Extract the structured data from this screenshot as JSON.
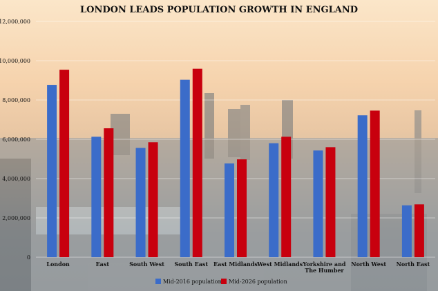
{
  "chart_data": {
    "type": "bar",
    "title": "LONDON LEADS POPULATION GROWTH IN ENGLAND",
    "xlabel": "",
    "ylabel": "",
    "categories": [
      "London",
      "East",
      "South West",
      "South East",
      "East Midlands",
      "West Midlands",
      "Yorkshire and The Humber",
      "North West",
      "North East"
    ],
    "category_lines": [
      [
        "London"
      ],
      [
        "East"
      ],
      [
        "South West"
      ],
      [
        "South East"
      ],
      [
        "East Midlands"
      ],
      [
        "West Midlands"
      ],
      [
        "Yorkshire and",
        "The Humber"
      ],
      [
        "North West"
      ],
      [
        "North East"
      ]
    ],
    "series": [
      {
        "name": "Mid-2016 population",
        "color": "#3b6cc9",
        "values": [
          8770000,
          6130000,
          5560000,
          9030000,
          4770000,
          5800000,
          5430000,
          7220000,
          2640000
        ]
      },
      {
        "name": "Mid-2026 population",
        "color": "#c8000e",
        "values": [
          9540000,
          6560000,
          5850000,
          9590000,
          4980000,
          6130000,
          5600000,
          7460000,
          2690000
        ]
      }
    ],
    "ylim": [
      0,
      12000000
    ],
    "yticks": [
      "0",
      "2,000,000",
      "4,000,000",
      "6,000,000",
      "8,000,000",
      "10,000,000",
      "12,000,000"
    ],
    "grid": true,
    "legend_position": "bottom-center"
  }
}
